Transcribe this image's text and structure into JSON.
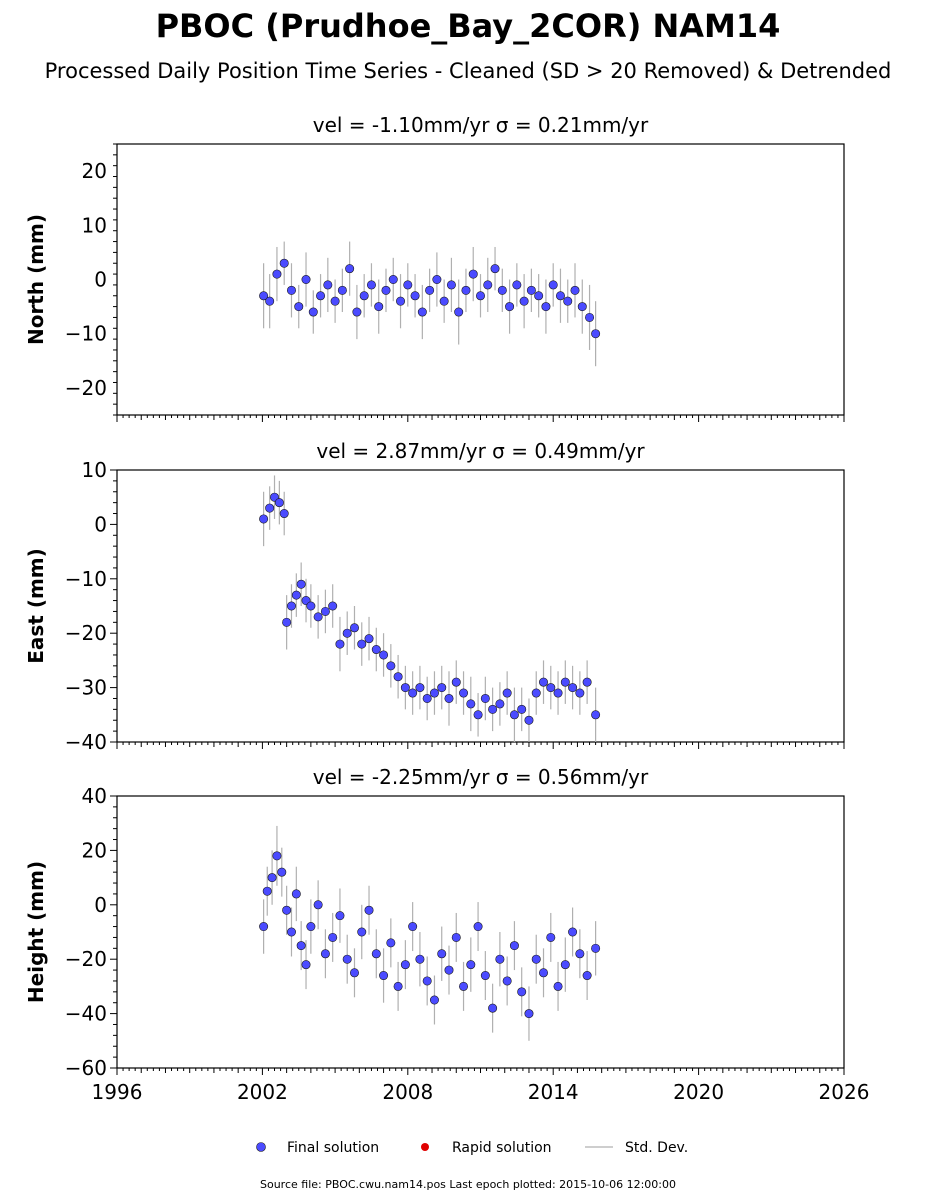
{
  "title": "PBOC (Prudhoe_Bay_2COR) NAM14",
  "subtitle": "Processed Daily Position Time Series - Cleaned (SD > 20 Removed) & Detrended",
  "footer": "Source file: PBOC.cwu.nam14.pos  Last epoch plotted: 2015-10-06 12:00:00",
  "legend": {
    "final": "Final solution",
    "rapid": "Rapid solution",
    "stddev": "Std. Dev."
  },
  "colors": {
    "final": "#4b4bff",
    "final_edge": "#1a1a1a",
    "rapid": "#e00000",
    "stddev": "#b0b0b0"
  },
  "chart_data": [
    {
      "type": "scatter",
      "id": "north",
      "title": "vel = -1.10mm/yr   σ = 0.21mm/yr",
      "ylabel": "North (mm)",
      "xlim": [
        1996,
        2026
      ],
      "ylim": [
        -25,
        25
      ],
      "yticks": [
        -20,
        -10,
        0,
        10,
        20
      ],
      "x": [
        2002.05,
        2002.3,
        2002.6,
        2002.9,
        2003.2,
        2003.5,
        2003.8,
        2004.1,
        2004.4,
        2004.7,
        2005.0,
        2005.3,
        2005.6,
        2005.9,
        2006.2,
        2006.5,
        2006.8,
        2007.1,
        2007.4,
        2007.7,
        2008.0,
        2008.3,
        2008.6,
        2008.9,
        2009.2,
        2009.5,
        2009.8,
        2010.1,
        2010.4,
        2010.7,
        2011.0,
        2011.3,
        2011.6,
        2011.9,
        2012.2,
        2012.5,
        2012.8,
        2013.1,
        2013.4,
        2013.7,
        2014.0,
        2014.3,
        2014.6,
        2014.9,
        2015.2,
        2015.5,
        2015.75
      ],
      "y": [
        -3,
        -4,
        1,
        3,
        -2,
        -5,
        0,
        -6,
        -3,
        -1,
        -4,
        -2,
        2,
        -6,
        -3,
        -1,
        -5,
        -2,
        0,
        -4,
        -1,
        -3,
        -6,
        -2,
        0,
        -4,
        -1,
        -6,
        -2,
        1,
        -3,
        -1,
        2,
        -2,
        -5,
        -1,
        -4,
        -2,
        -3,
        -5,
        -1,
        -3,
        -4,
        -2,
        -5,
        -7,
        -10
      ],
      "sd": [
        6,
        5,
        5,
        4,
        5,
        4,
        5,
        4,
        4,
        5,
        4,
        4,
        5,
        5,
        4,
        4,
        5,
        4,
        4,
        5,
        4,
        4,
        5,
        4,
        5,
        4,
        5,
        6,
        4,
        5,
        4,
        5,
        4,
        4,
        5,
        4,
        5,
        4,
        4,
        5,
        4,
        5,
        4,
        5,
        5,
        6,
        6
      ]
    },
    {
      "type": "scatter",
      "id": "east",
      "title": "vel = 2.87mm/yr   σ = 0.49mm/yr",
      "ylabel": "East (mm)",
      "xlim": [
        1996,
        2026
      ],
      "ylim": [
        -40,
        10
      ],
      "yticks": [
        -40,
        -30,
        -20,
        -10,
        0,
        10
      ],
      "x": [
        2002.05,
        2002.3,
        2002.5,
        2002.7,
        2002.9,
        2003.0,
        2003.2,
        2003.4,
        2003.6,
        2003.8,
        2004.0,
        2004.3,
        2004.6,
        2004.9,
        2005.2,
        2005.5,
        2005.8,
        2006.1,
        2006.4,
        2006.7,
        2007.0,
        2007.3,
        2007.6,
        2007.9,
        2008.2,
        2008.5,
        2008.8,
        2009.1,
        2009.4,
        2009.7,
        2010.0,
        2010.3,
        2010.6,
        2010.9,
        2011.2,
        2011.5,
        2011.8,
        2012.1,
        2012.4,
        2012.7,
        2013.0,
        2013.3,
        2013.6,
        2013.9,
        2014.2,
        2014.5,
        2014.8,
        2015.1,
        2015.4,
        2015.75
      ],
      "y": [
        1,
        3,
        5,
        4,
        2,
        -18,
        -15,
        -13,
        -11,
        -14,
        -15,
        -17,
        -16,
        -15,
        -22,
        -20,
        -19,
        -22,
        -21,
        -23,
        -24,
        -26,
        -28,
        -30,
        -31,
        -30,
        -32,
        -31,
        -30,
        -32,
        -29,
        -31,
        -33,
        -35,
        -32,
        -34,
        -33,
        -31,
        -35,
        -34,
        -36,
        -31,
        -29,
        -30,
        -31,
        -29,
        -30,
        -31,
        -29,
        -35
      ],
      "sd": [
        5,
        4,
        4,
        4,
        4,
        5,
        4,
        4,
        4,
        4,
        4,
        4,
        4,
        4,
        5,
        4,
        4,
        4,
        4,
        4,
        4,
        4,
        4,
        4,
        4,
        4,
        4,
        4,
        4,
        5,
        4,
        4,
        5,
        4,
        4,
        4,
        4,
        4,
        5,
        4,
        4,
        4,
        4,
        4,
        4,
        4,
        4,
        4,
        4,
        5
      ]
    },
    {
      "type": "scatter",
      "id": "height",
      "title": "vel = -2.25mm/yr   σ = 0.56mm/yr",
      "ylabel": "Height (mm)",
      "xlim": [
        1996,
        2026
      ],
      "xticks": [
        1996,
        2002,
        2008,
        2014,
        2020,
        2026
      ],
      "ylim": [
        -60,
        40
      ],
      "yticks": [
        -60,
        -40,
        -20,
        0,
        20,
        40
      ],
      "x": [
        2002.05,
        2002.2,
        2002.4,
        2002.6,
        2002.8,
        2003.0,
        2003.2,
        2003.4,
        2003.6,
        2003.8,
        2004.0,
        2004.3,
        2004.6,
        2004.9,
        2005.2,
        2005.5,
        2005.8,
        2006.1,
        2006.4,
        2006.7,
        2007.0,
        2007.3,
        2007.6,
        2007.9,
        2008.2,
        2008.5,
        2008.8,
        2009.1,
        2009.4,
        2009.7,
        2010.0,
        2010.3,
        2010.6,
        2010.9,
        2011.2,
        2011.5,
        2011.8,
        2012.1,
        2012.4,
        2012.7,
        2013.0,
        2013.3,
        2013.6,
        2013.9,
        2014.2,
        2014.5,
        2014.8,
        2015.1,
        2015.4,
        2015.75
      ],
      "y": [
        -8,
        5,
        10,
        18,
        12,
        -2,
        -10,
        4,
        -15,
        -22,
        -8,
        0,
        -18,
        -12,
        -4,
        -20,
        -25,
        -10,
        -2,
        -18,
        -26,
        -14,
        -30,
        -22,
        -8,
        -20,
        -28,
        -35,
        -18,
        -24,
        -12,
        -30,
        -22,
        -8,
        -26,
        -38,
        -20,
        -28,
        -15,
        -32,
        -40,
        -20,
        -25,
        -12,
        -30,
        -22,
        -10,
        -18,
        -26,
        -16
      ],
      "sd": [
        10,
        9,
        10,
        11,
        9,
        9,
        9,
        10,
        9,
        9,
        10,
        9,
        9,
        9,
        10,
        9,
        9,
        10,
        9,
        9,
        10,
        9,
        9,
        9,
        9,
        10,
        9,
        9,
        10,
        9,
        9,
        9,
        10,
        9,
        9,
        9,
        10,
        9,
        9,
        9,
        10,
        9,
        9,
        9,
        9,
        10,
        9,
        9,
        9,
        10
      ]
    }
  ]
}
